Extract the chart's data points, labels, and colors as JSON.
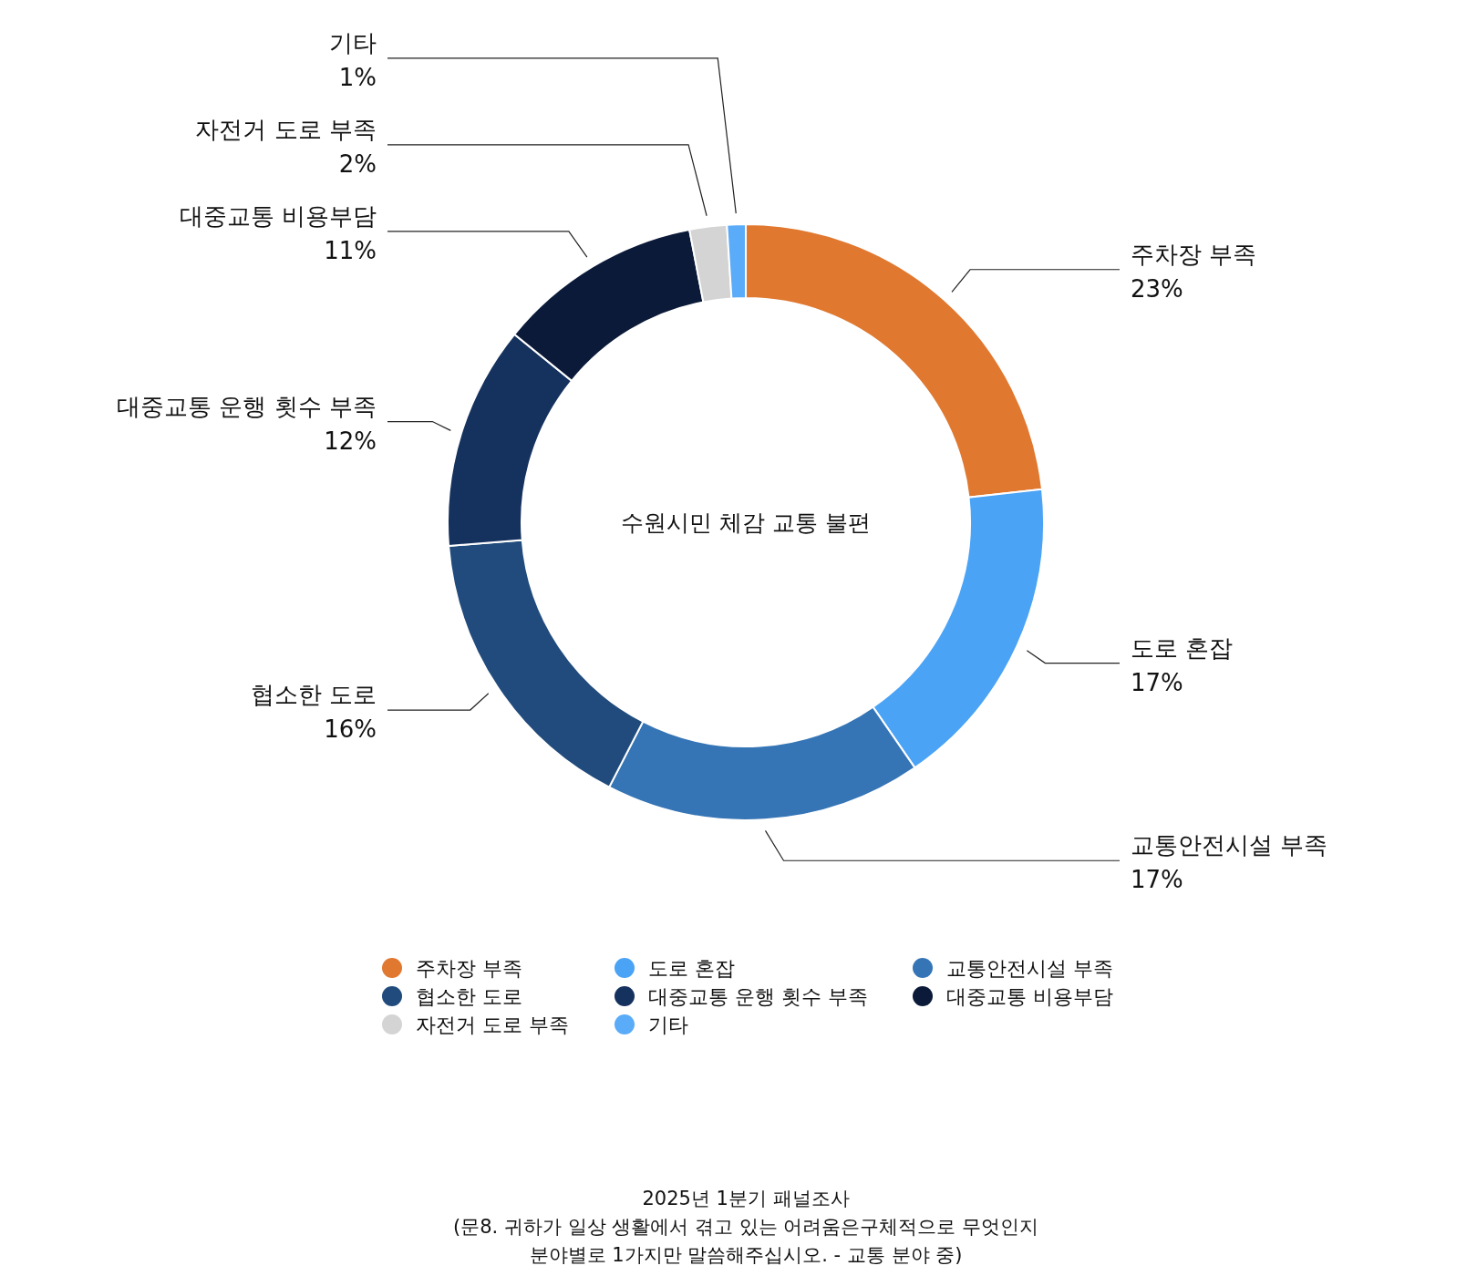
{
  "chart_data": {
    "type": "donut",
    "title": "수원시민 체감 교통 불편",
    "categories": [
      "주차장 부족",
      "도로 혼잡",
      "교통안전시설 부족",
      "협소한 도로",
      "대중교통 운행 횟수 부족",
      "대중교통 비용부담",
      "자전거 도로 부족",
      "기타"
    ],
    "values": [
      23,
      17,
      17,
      16,
      12,
      11,
      2,
      1
    ],
    "value_labels": [
      "23%",
      "17%",
      "17%",
      "16%",
      "12%",
      "11%",
      "2%",
      "1%"
    ],
    "colors": [
      "#e07830",
      "#4aa3f5",
      "#3575b5",
      "#214b7c",
      "#15325e",
      "#0a1a38",
      "#d4d4d4",
      "#5aabf8"
    ],
    "legend": "bottom",
    "annotations": [
      "2025년 1분기 패널조사",
      "(문8. 귀하가 일상 생활에서 겪고 있는 어려움은구체적으로 무엇인지",
      "분야별로 1가지만 말씀해주십시오. - 교통 분야 중)"
    ]
  }
}
